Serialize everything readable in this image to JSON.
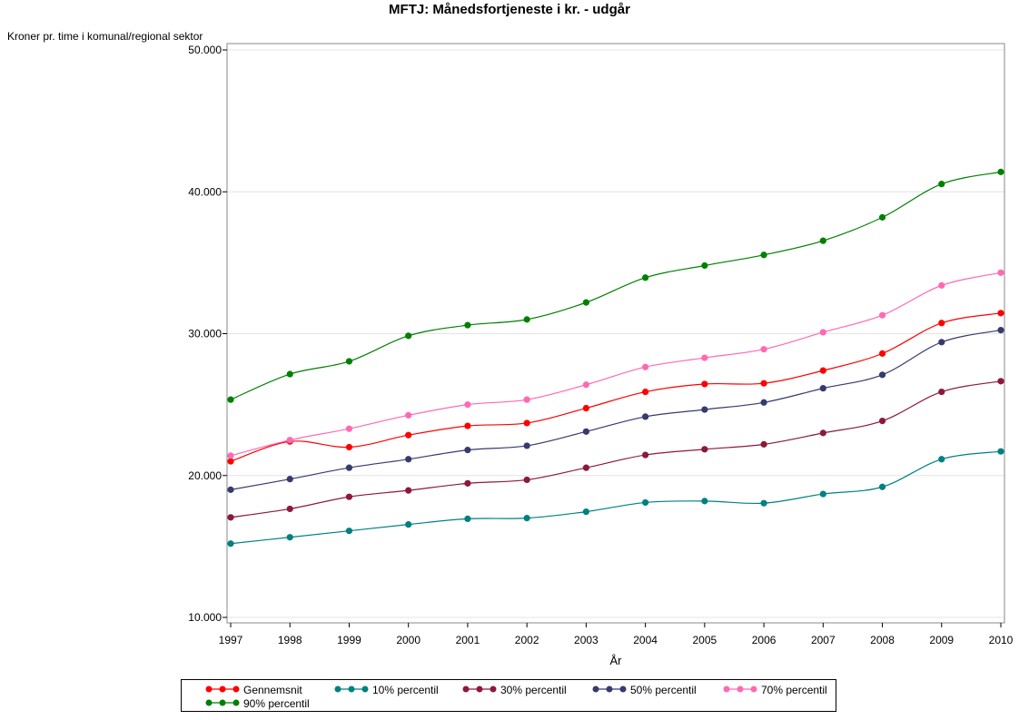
{
  "chart_data": {
    "type": "line",
    "title": "MFTJ: Månedsfortjeneste i kr. - udgår",
    "xlabel": "År",
    "ylabel": "Kroner pr. time i komunal/regional sektor",
    "x": [
      1997,
      1998,
      1999,
      2000,
      2001,
      2002,
      2003,
      2004,
      2005,
      2006,
      2007,
      2008,
      2009,
      2010
    ],
    "x_tick_labels": [
      "1997",
      "1998",
      "1999",
      "2000",
      "2001",
      "2002",
      "2003",
      "2004",
      "2005",
      "2006",
      "2007",
      "2008",
      "2009",
      "2010"
    ],
    "ylim": [
      10000,
      50000
    ],
    "y_ticks": [
      10000,
      20000,
      30000,
      40000,
      50000
    ],
    "y_tick_labels": [
      "10.000",
      "20.000",
      "30.000",
      "40.000",
      "50.000"
    ],
    "grid": "horizontal",
    "legend_position": "bottom",
    "series": [
      {
        "name": "Gennemsnit",
        "color": "#ff0000",
        "values": [
          21000,
          22400,
          22000,
          22850,
          23500,
          23700,
          24750,
          25900,
          26450,
          26500,
          27400,
          28600,
          30750,
          31450
        ]
      },
      {
        "name": "10% percentil",
        "color": "#008080",
        "values": [
          15200,
          15650,
          16100,
          16550,
          16950,
          17000,
          17450,
          18100,
          18200,
          18050,
          18700,
          19200,
          21150,
          21700
        ]
      },
      {
        "name": "30% percentil",
        "color": "#8b1a3a",
        "values": [
          17050,
          17650,
          18500,
          18950,
          19450,
          19700,
          20550,
          21450,
          21850,
          22200,
          23000,
          23850,
          25900,
          26650
        ]
      },
      {
        "name": "50% percentil",
        "color": "#363a6e",
        "values": [
          19000,
          19750,
          20550,
          21150,
          21800,
          22100,
          23100,
          24150,
          24650,
          25150,
          26150,
          27100,
          29400,
          30250
        ]
      },
      {
        "name": "70% percentil",
        "color": "#ff69b4",
        "values": [
          21400,
          22500,
          23300,
          24250,
          25000,
          25350,
          26400,
          27650,
          28300,
          28900,
          30100,
          31300,
          33400,
          34300
        ]
      },
      {
        "name": "90% percentil",
        "color": "#008000",
        "values": [
          25350,
          27150,
          28050,
          29850,
          30600,
          31000,
          32200,
          33950,
          34800,
          35550,
          36550,
          38200,
          40550,
          41400
        ]
      }
    ]
  }
}
